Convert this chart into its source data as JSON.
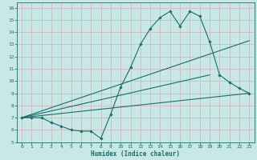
{
  "xlabel": "Humidex (Indice chaleur)",
  "bg_color": "#c8e8e8",
  "grid_color": "#d4b8b8",
  "line_color": "#1a6b6b",
  "spine_color": "#1a6b6b",
  "xlim": [
    -0.5,
    23.5
  ],
  "ylim": [
    5,
    16.4
  ],
  "xticks": [
    0,
    1,
    2,
    3,
    4,
    5,
    6,
    7,
    8,
    9,
    10,
    11,
    12,
    13,
    14,
    15,
    16,
    17,
    18,
    19,
    20,
    21,
    22,
    23
  ],
  "yticks": [
    5,
    6,
    7,
    8,
    9,
    10,
    11,
    12,
    13,
    14,
    15,
    16
  ],
  "series_main": {
    "x": [
      0,
      1,
      2,
      3,
      4,
      5,
      6,
      7,
      8,
      9,
      10,
      11,
      12,
      13,
      14,
      15,
      16,
      17,
      18,
      19,
      20,
      21,
      22,
      23
    ],
    "y": [
      7.0,
      7.0,
      7.0,
      6.6,
      6.3,
      6.0,
      5.9,
      5.9,
      5.3,
      7.3,
      9.5,
      11.1,
      13.0,
      14.3,
      15.2,
      15.7,
      14.5,
      15.7,
      15.3,
      13.2,
      10.5,
      9.9,
      9.4,
      9.0
    ]
  },
  "series_lines": [
    {
      "x": [
        0,
        23
      ],
      "y": [
        7.0,
        9.0
      ]
    },
    {
      "x": [
        0,
        23
      ],
      "y": [
        7.0,
        13.3
      ]
    },
    {
      "x": [
        0,
        19
      ],
      "y": [
        7.0,
        10.5
      ]
    }
  ]
}
